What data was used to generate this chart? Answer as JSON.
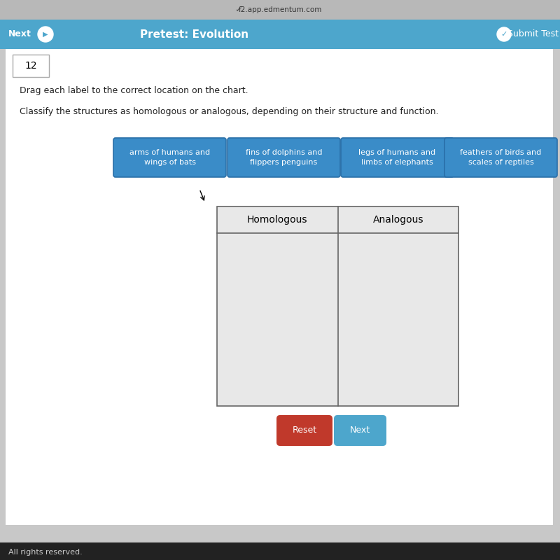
{
  "page_bg": "#c8c8c8",
  "content_bg": "#d4d4d4",
  "white_area_bg": "#ffffff",
  "top_bar_color": "#b0b0b0",
  "nav_bar_color": "#4da6cc",
  "nav_left_text": "Next",
  "nav_right_text": "Submit Test",
  "title_bar_text": "Pretest: Evolution",
  "browser_url": "f2.app.edmentum.com",
  "question_number": "12",
  "instruction1": "Drag each label to the correct location on the chart.",
  "instruction2": "Classify the structures as homologous or analogous, depending on their structure and function.",
  "labels": [
    "arms of humans and\nwings of bats",
    "fins of dolphins and\nflippers penguins",
    "legs of humans and\nlimbs of elephants",
    "feathers of birds and\nscales of reptiles"
  ],
  "label_bg_color": "#3a8cc8",
  "label_text_color": "#ffffff",
  "table_header_left": "Homologous",
  "table_header_right": "Analogous",
  "table_border_color": "#666666",
  "table_bg_color": "#e8e8e8",
  "reset_btn_color": "#c0392b",
  "next_btn_color": "#4da6cc",
  "reset_text": "Reset",
  "next_text": "Next",
  "btn_text_color": "#ffffff",
  "footer_text": "All rights reserved.",
  "footer_bg": "#222222",
  "footer_text_color": "#cccccc"
}
